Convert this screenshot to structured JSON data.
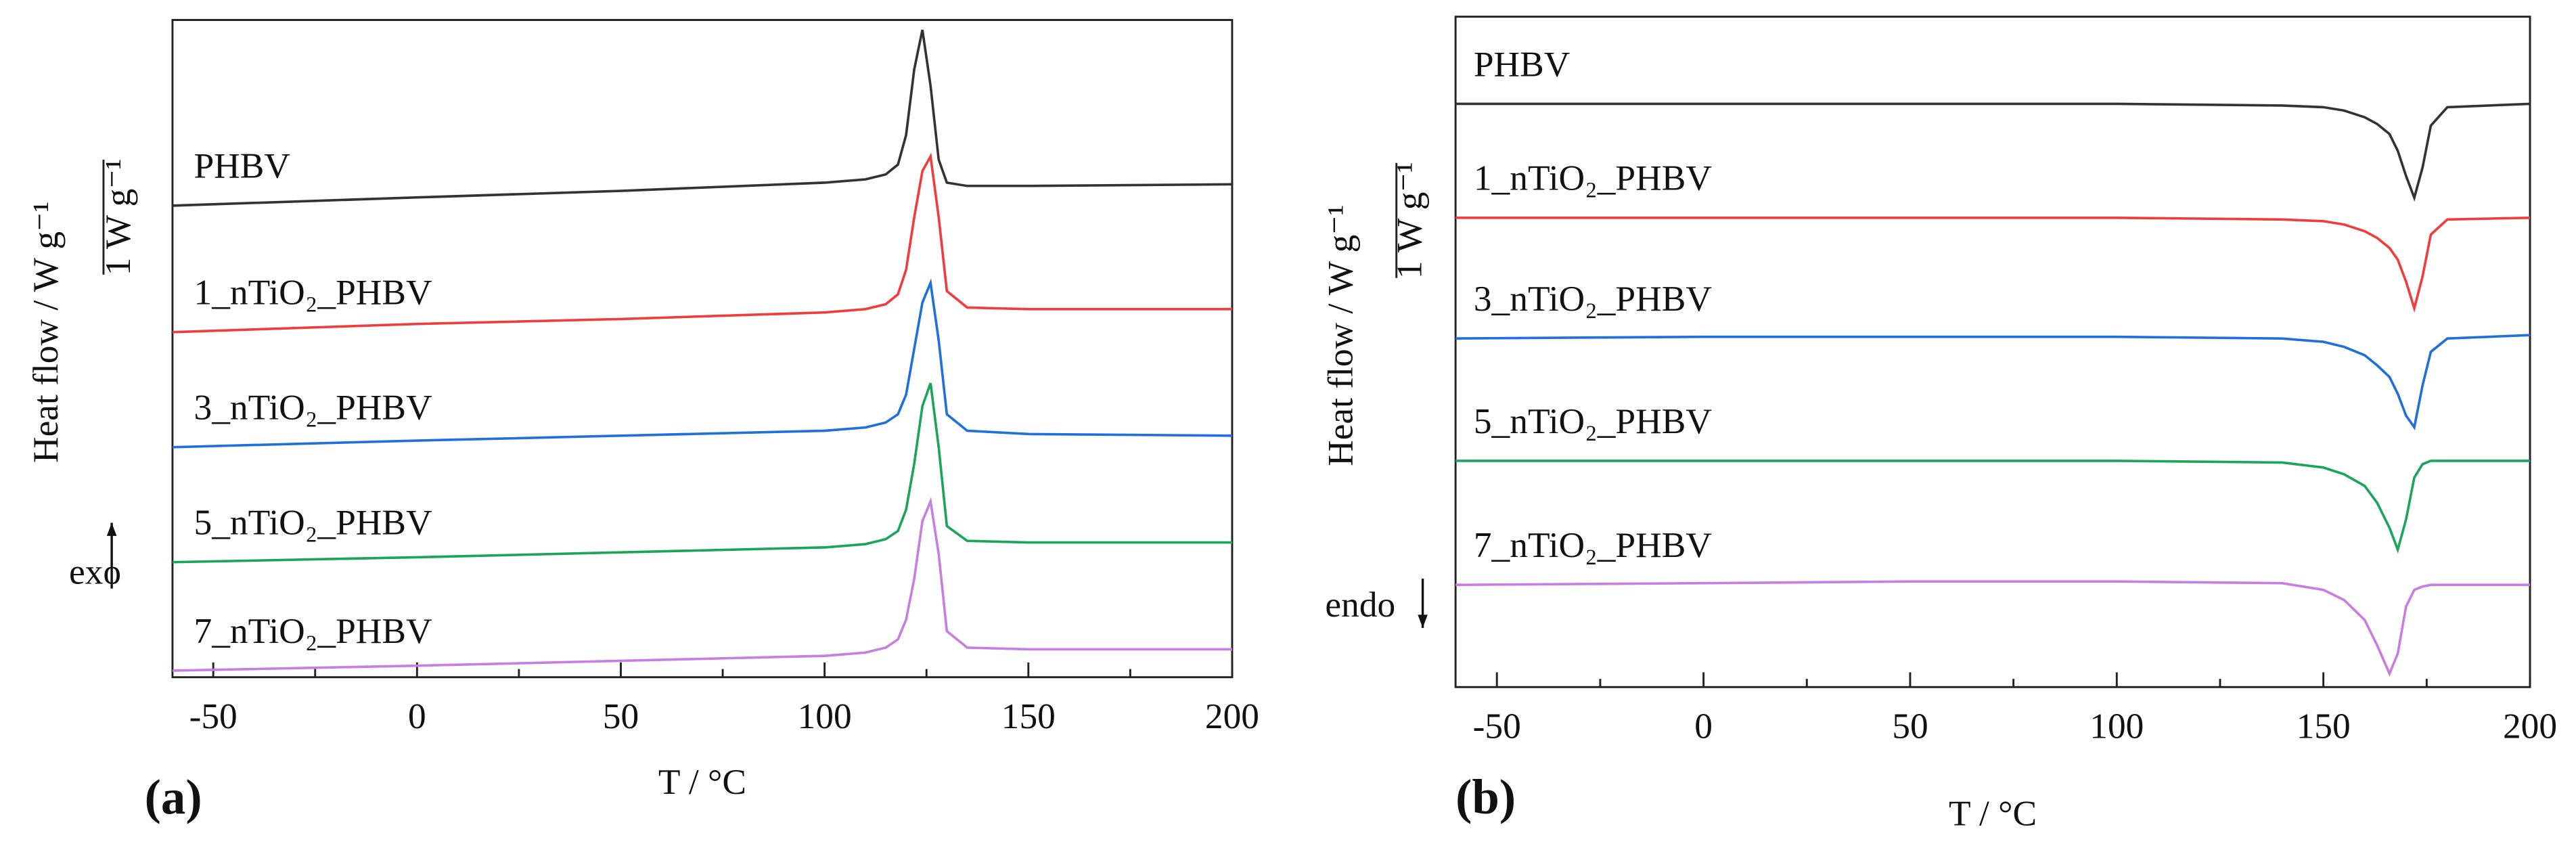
{
  "chart_data": [
    {
      "type": "line",
      "panel_label": "(a)",
      "xlabel": "T / °C",
      "ylabel": "Heat flow / W g⁻¹",
      "scale_label": "1 W g⁻¹",
      "annotation": "exo",
      "xlim": [
        -60,
        200
      ],
      "xticks": [
        -50,
        0,
        50,
        100,
        150,
        200
      ],
      "xminorticks": [
        -25,
        25,
        75,
        125,
        175
      ],
      "ylim": [
        0,
        400
      ],
      "x": [
        -60,
        0,
        50,
        100,
        110,
        115,
        118,
        120,
        122,
        124,
        126,
        128,
        130,
        135,
        150,
        200
      ],
      "series": [
        {
          "name": "PHBV",
          "color": "#333333",
          "values": [
            287,
            292,
            296,
            301,
            303,
            306,
            312,
            330,
            370,
            394,
            360,
            315,
            301,
            299,
            299,
            300
          ]
        },
        {
          "name": "1_nTiO₂_PHBV",
          "color": "#f03c3c",
          "values": [
            210,
            215,
            218,
            222,
            224,
            227,
            233,
            248,
            280,
            308,
            317,
            280,
            235,
            225,
            224,
            224
          ]
        },
        {
          "name": "3_nTiO₂_PHBV",
          "color": "#1f6fdc",
          "values": [
            140,
            144,
            147,
            150,
            152,
            155,
            160,
            172,
            200,
            228,
            240,
            205,
            160,
            150,
            148,
            147
          ]
        },
        {
          "name": "5_nTiO₂_PHBV",
          "color": "#1aa55a",
          "values": [
            70,
            73,
            76,
            79,
            81,
            84,
            89,
            102,
            130,
            165,
            179,
            140,
            92,
            83,
            82,
            82
          ]
        },
        {
          "name": "7_nTiO₂_PHBV",
          "color": "#c77ee0",
          "values": [
            4,
            7,
            10,
            13,
            15,
            18,
            23,
            35,
            60,
            95,
            107,
            75,
            28,
            18,
            17,
            17
          ]
        }
      ]
    },
    {
      "type": "line",
      "panel_label": "(b)",
      "xlabel": "T / °C",
      "ylabel": "Heat flow / W g⁻¹",
      "scale_label": "1 W g⁻¹",
      "annotation": "endo",
      "xlim": [
        -60,
        200
      ],
      "xticks": [
        -50,
        0,
        50,
        100,
        150,
        200
      ],
      "xminorticks": [
        -25,
        25,
        75,
        125,
        175
      ],
      "ylim": [
        0,
        400
      ],
      "x": [
        -60,
        0,
        50,
        100,
        140,
        150,
        155,
        160,
        163,
        166,
        168,
        170,
        172,
        174,
        176,
        180,
        200
      ],
      "series": [
        {
          "name": "PHBV",
          "color": "#333333",
          "values": [
            348,
            348,
            348,
            348,
            347,
            346,
            344,
            340,
            336,
            330,
            320,
            305,
            292,
            310,
            335,
            346,
            348
          ]
        },
        {
          "name": "1_nTiO₂_PHBV",
          "color": "#f03c3c",
          "values": [
            280,
            280,
            280,
            280,
            279,
            278,
            276,
            272,
            268,
            262,
            255,
            242,
            226,
            245,
            270,
            279,
            280
          ]
        },
        {
          "name": "3_nTiO₂_PHBV",
          "color": "#1f6fdc",
          "values": [
            208,
            209,
            209,
            209,
            208,
            206,
            203,
            198,
            192,
            185,
            175,
            162,
            155,
            180,
            200,
            208,
            210
          ]
        },
        {
          "name": "5_nTiO₂_PHBV",
          "color": "#1aa55a",
          "values": [
            135,
            135,
            135,
            135,
            134,
            131,
            127,
            120,
            110,
            95,
            82,
            100,
            125,
            133,
            135,
            135,
            135
          ]
        },
        {
          "name": "7_nTiO₂_PHBV",
          "color": "#c77ee0",
          "values": [
            61,
            62,
            63,
            63,
            62,
            58,
            52,
            40,
            25,
            8,
            20,
            48,
            58,
            60,
            61,
            61,
            61
          ]
        }
      ]
    }
  ]
}
